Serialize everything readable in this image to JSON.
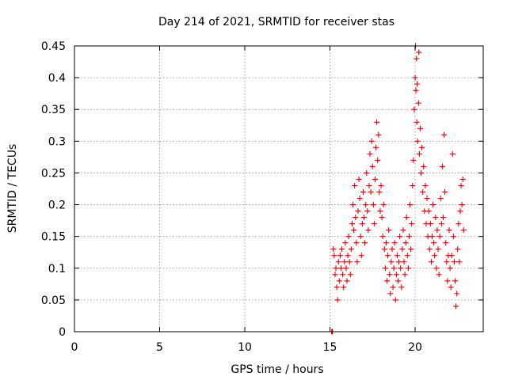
{
  "chart_data": {
    "type": "scatter",
    "title": "Day 214 of 2021, SRMTID for receiver stas",
    "xlabel": "GPS time / hours",
    "ylabel": "SRMTID / TECUs",
    "xlim": [
      0,
      24
    ],
    "ylim": [
      0,
      0.45
    ],
    "xticks": [
      0,
      5,
      10,
      15,
      20
    ],
    "xtick_labels": [
      "0",
      "5",
      "10",
      "15",
      "20"
    ],
    "yticks": [
      0,
      0.05,
      0.1,
      0.15,
      0.2,
      0.25,
      0.3,
      0.35,
      0.4,
      0.45
    ],
    "ytick_labels": [
      "0",
      "0.05",
      "0.1",
      "0.15",
      "0.2",
      "0.25",
      "0.3",
      "0.35",
      "0.4",
      "0.45"
    ],
    "grid": true,
    "marker": "plus",
    "color": "#e00000",
    "series": [
      {
        "name": "SRMTID",
        "points": [
          [
            15.1,
            0.0
          ],
          [
            15.12,
            0.0
          ],
          [
            15.15,
            0.0
          ],
          [
            15.2,
            0.13
          ],
          [
            15.25,
            0.12
          ],
          [
            15.3,
            0.09
          ],
          [
            15.35,
            0.1
          ],
          [
            15.4,
            0.07
          ],
          [
            15.45,
            0.05
          ],
          [
            15.5,
            0.11
          ],
          [
            15.55,
            0.08
          ],
          [
            15.6,
            0.12
          ],
          [
            15.65,
            0.1
          ],
          [
            15.7,
            0.13
          ],
          [
            15.75,
            0.09
          ],
          [
            15.8,
            0.07
          ],
          [
            15.85,
            0.11
          ],
          [
            15.9,
            0.14
          ],
          [
            15.95,
            0.1
          ],
          [
            16.0,
            0.08
          ],
          [
            16.05,
            0.12
          ],
          [
            16.1,
            0.15
          ],
          [
            16.15,
            0.11
          ],
          [
            16.2,
            0.09
          ],
          [
            16.25,
            0.13
          ],
          [
            16.3,
            0.17
          ],
          [
            16.35,
            0.2
          ],
          [
            16.4,
            0.16
          ],
          [
            16.45,
            0.23
          ],
          [
            16.5,
            0.18
          ],
          [
            16.55,
            0.14
          ],
          [
            16.6,
            0.11
          ],
          [
            16.65,
            0.19
          ],
          [
            16.7,
            0.24
          ],
          [
            16.75,
            0.21
          ],
          [
            16.8,
            0.15
          ],
          [
            16.85,
            0.12
          ],
          [
            16.9,
            0.17
          ],
          [
            16.95,
            0.22
          ],
          [
            17.0,
            0.18
          ],
          [
            17.05,
            0.14
          ],
          [
            17.1,
            0.2
          ],
          [
            17.15,
            0.25
          ],
          [
            17.2,
            0.19
          ],
          [
            17.25,
            0.16
          ],
          [
            17.3,
            0.23
          ],
          [
            17.35,
            0.28
          ],
          [
            17.4,
            0.22
          ],
          [
            17.45,
            0.3
          ],
          [
            17.5,
            0.26
          ],
          [
            17.55,
            0.2
          ],
          [
            17.6,
            0.17
          ],
          [
            17.65,
            0.24
          ],
          [
            17.7,
            0.29
          ],
          [
            17.75,
            0.33
          ],
          [
            17.8,
            0.27
          ],
          [
            17.85,
            0.31
          ],
          [
            17.9,
            0.22
          ],
          [
            17.95,
            0.19
          ],
          [
            18.0,
            0.23
          ],
          [
            18.05,
            0.18
          ],
          [
            18.1,
            0.15
          ],
          [
            18.15,
            0.2
          ],
          [
            18.2,
            0.13
          ],
          [
            18.25,
            0.1
          ],
          [
            18.3,
            0.14
          ],
          [
            18.35,
            0.08
          ],
          [
            18.4,
            0.12
          ],
          [
            18.45,
            0.16
          ],
          [
            18.5,
            0.09
          ],
          [
            18.55,
            0.06
          ],
          [
            18.6,
            0.11
          ],
          [
            18.65,
            0.13
          ],
          [
            18.7,
            0.07
          ],
          [
            18.75,
            0.1
          ],
          [
            18.8,
            0.14
          ],
          [
            18.85,
            0.05
          ],
          [
            18.9,
            0.09
          ],
          [
            18.95,
            0.12
          ],
          [
            19.0,
            0.08
          ],
          [
            19.05,
            0.11
          ],
          [
            19.1,
            0.15
          ],
          [
            19.15,
            0.1
          ],
          [
            19.2,
            0.07
          ],
          [
            19.25,
            0.13
          ],
          [
            19.3,
            0.16
          ],
          [
            19.35,
            0.11
          ],
          [
            19.4,
            0.09
          ],
          [
            19.45,
            0.14
          ],
          [
            19.5,
            0.18
          ],
          [
            19.55,
            0.12
          ],
          [
            19.6,
            0.1
          ],
          [
            19.65,
            0.15
          ],
          [
            19.7,
            0.2
          ],
          [
            19.75,
            0.13
          ],
          [
            19.8,
            0.17
          ],
          [
            19.85,
            0.23
          ],
          [
            19.9,
            0.27
          ],
          [
            19.95,
            0.35
          ],
          [
            20.0,
            0.4
          ],
          [
            20.02,
            0.45
          ],
          [
            20.05,
            0.38
          ],
          [
            20.08,
            0.43
          ],
          [
            20.1,
            0.33
          ],
          [
            20.12,
            0.39
          ],
          [
            20.15,
            0.3
          ],
          [
            20.2,
            0.36
          ],
          [
            20.22,
            0.44
          ],
          [
            20.25,
            0.28
          ],
          [
            20.3,
            0.32
          ],
          [
            20.35,
            0.25
          ],
          [
            20.4,
            0.29
          ],
          [
            20.45,
            0.22
          ],
          [
            20.5,
            0.26
          ],
          [
            20.55,
            0.19
          ],
          [
            20.6,
            0.23
          ],
          [
            20.65,
            0.17
          ],
          [
            20.7,
            0.21
          ],
          [
            20.75,
            0.15
          ],
          [
            20.8,
            0.19
          ],
          [
            20.85,
            0.13
          ],
          [
            20.9,
            0.17
          ],
          [
            20.95,
            0.11
          ],
          [
            21.0,
            0.15
          ],
          [
            21.05,
            0.2
          ],
          [
            21.1,
            0.14
          ],
          [
            21.15,
            0.12
          ],
          [
            21.2,
            0.18
          ],
          [
            21.25,
            0.1
          ],
          [
            21.3,
            0.16
          ],
          [
            21.35,
            0.13
          ],
          [
            21.4,
            0.09
          ],
          [
            21.45,
            0.15
          ],
          [
            21.5,
            0.21
          ],
          [
            21.55,
            0.17
          ],
          [
            21.6,
            0.26
          ],
          [
            21.65,
            0.18
          ],
          [
            21.7,
            0.31
          ],
          [
            21.75,
            0.22
          ],
          [
            21.8,
            0.14
          ],
          [
            21.85,
            0.11
          ],
          [
            21.9,
            0.08
          ],
          [
            21.95,
            0.12
          ],
          [
            22.0,
            0.16
          ],
          [
            22.05,
            0.1
          ],
          [
            22.1,
            0.07
          ],
          [
            22.15,
            0.12
          ],
          [
            22.2,
            0.28
          ],
          [
            22.25,
            0.15
          ],
          [
            22.3,
            0.11
          ],
          [
            22.35,
            0.08
          ],
          [
            22.4,
            0.04
          ],
          [
            22.45,
            0.06
          ],
          [
            22.5,
            0.13
          ],
          [
            22.55,
            0.17
          ],
          [
            22.6,
            0.11
          ],
          [
            22.65,
            0.19
          ],
          [
            22.7,
            0.23
          ],
          [
            22.75,
            0.2
          ],
          [
            22.8,
            0.24
          ],
          [
            22.85,
            0.16
          ]
        ]
      }
    ]
  }
}
